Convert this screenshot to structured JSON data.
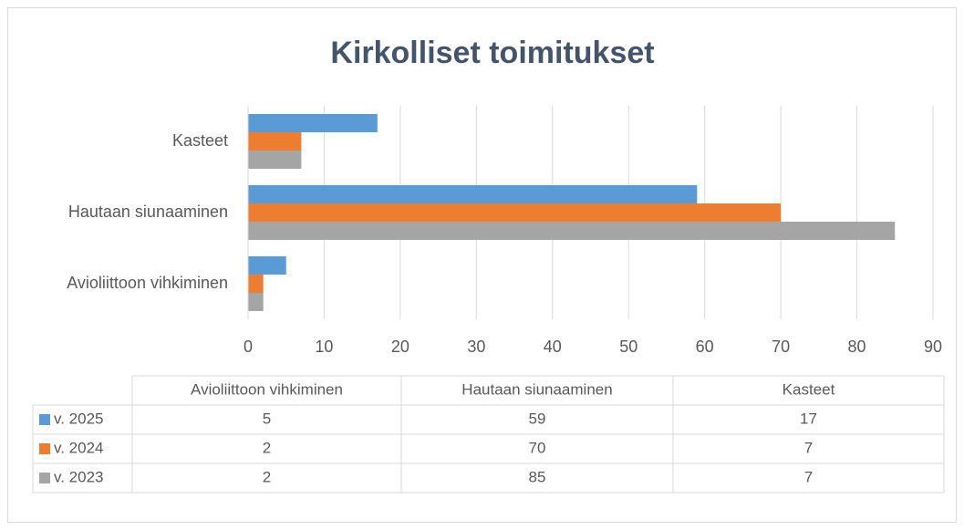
{
  "chart_data": {
    "type": "bar",
    "orientation": "horizontal",
    "title": "Kirkolliset toimitukset",
    "categories": [
      "Avioliittoon vihkiminen",
      "Hautaan siunaaminen",
      "Kasteet"
    ],
    "series": [
      {
        "name": "v. 2025",
        "color": "#5b9bd5",
        "values": [
          5,
          59,
          17
        ]
      },
      {
        "name": "v. 2024",
        "color": "#ed7d31",
        "values": [
          2,
          70,
          7
        ]
      },
      {
        "name": "v. 2023",
        "color": "#a5a5a5",
        "values": [
          2,
          85,
          7
        ]
      }
    ],
    "xlim": [
      0,
      90
    ],
    "xticks": [
      0,
      10,
      20,
      30,
      40,
      50,
      60,
      70,
      80,
      90
    ],
    "grid": true,
    "data_table": true
  }
}
